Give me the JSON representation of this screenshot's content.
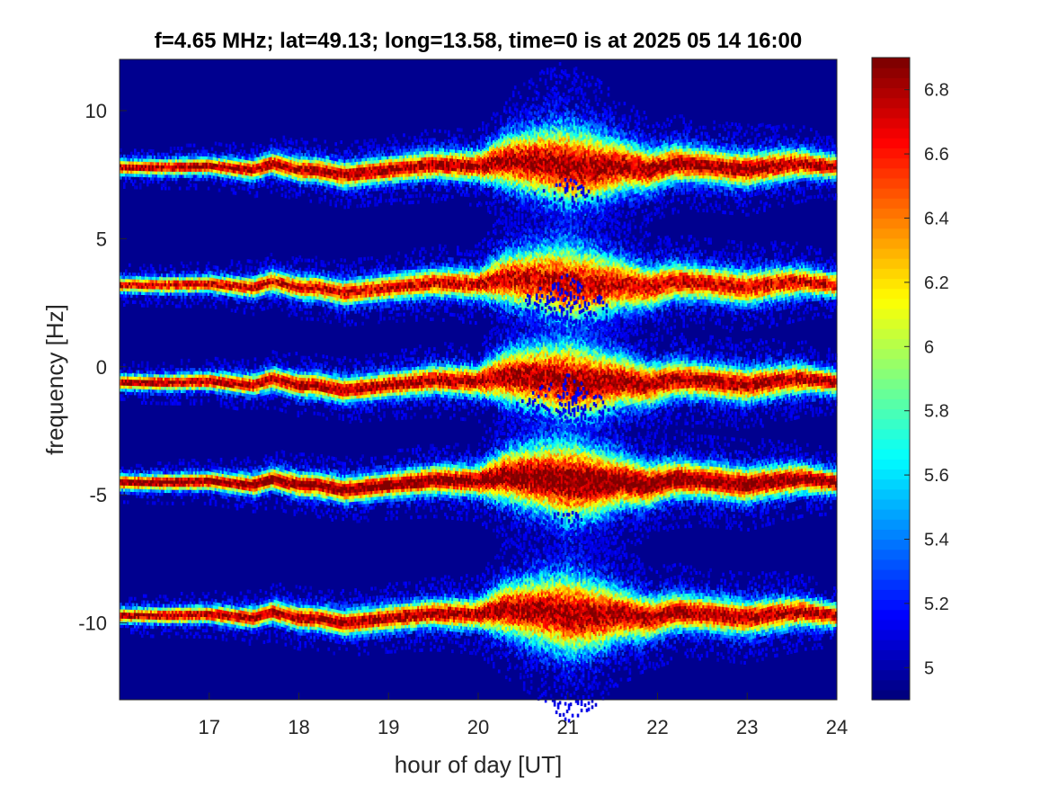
{
  "chart_data": {
    "type": "heatmap",
    "title": "f=4.65 MHz;  lat=49.13; long=13.58, time=0 is at 2025 05 14 16:00",
    "xlabel": "hour of day [UT]",
    "ylabel": "frequency [Hz]",
    "xlim": [
      16,
      24
    ],
    "ylim": [
      -13,
      12
    ],
    "x_ticks": [
      17,
      18,
      19,
      20,
      21,
      22,
      23,
      24
    ],
    "x_tick_labels": [
      "17",
      "18",
      "19",
      "20",
      "21",
      "22",
      "23",
      "24"
    ],
    "y_ticks": [
      10,
      5,
      0,
      -5,
      -10
    ],
    "y_tick_labels": [
      "10",
      "5",
      "0",
      "-5",
      "-10"
    ],
    "colormap": "jet",
    "background_color": "#00008f",
    "colorbar": {
      "range": [
        4.9,
        6.9
      ],
      "ticks": [
        6.8,
        6.6,
        6.4,
        6.2,
        6,
        5.8,
        5.6,
        5.4,
        5.2,
        5
      ],
      "tick_labels": [
        "6.8",
        "6.6",
        "6.4",
        "6.2",
        "6",
        "5.8",
        "5.6",
        "5.4",
        "5.2",
        "5"
      ]
    },
    "bands": [
      {
        "center_freq_hz": 7.8,
        "mean_level": 6.5
      },
      {
        "center_freq_hz": 3.2,
        "mean_level": 6.4
      },
      {
        "center_freq_hz": -0.6,
        "mean_level": 6.5
      },
      {
        "center_freq_hz": -4.5,
        "mean_level": 6.6
      },
      {
        "center_freq_hz": -9.7,
        "mean_level": 6.5
      }
    ],
    "band_track_hours": [
      16.0,
      16.5,
      17.0,
      17.5,
      17.7,
      18.0,
      18.2,
      18.5,
      19.0,
      19.5,
      20.0,
      20.3,
      20.7,
      21.0,
      21.3,
      21.6,
      21.9,
      22.2,
      22.6,
      23.0,
      23.3,
      23.6,
      24.0
    ],
    "band_track_offsets_hz": [
      0.0,
      0.0,
      0.05,
      -0.1,
      0.15,
      -0.1,
      -0.1,
      -0.3,
      -0.1,
      0.1,
      0.05,
      0.25,
      0.2,
      0.05,
      0.0,
      0.05,
      -0.1,
      0.15,
      0.05,
      -0.1,
      0.05,
      0.15,
      0.0
    ],
    "band_spread_hours": [
      16.0,
      17.0,
      18.0,
      19.0,
      20.0,
      20.3,
      20.7,
      21.0,
      21.3,
      21.6,
      22.0,
      22.5,
      23.0,
      23.5,
      24.0
    ],
    "band_spread_hz": [
      0.35,
      0.4,
      0.55,
      0.6,
      0.7,
      1.2,
      1.6,
      1.9,
      1.6,
      1.2,
      0.9,
      0.8,
      0.8,
      0.7,
      0.55
    ]
  }
}
